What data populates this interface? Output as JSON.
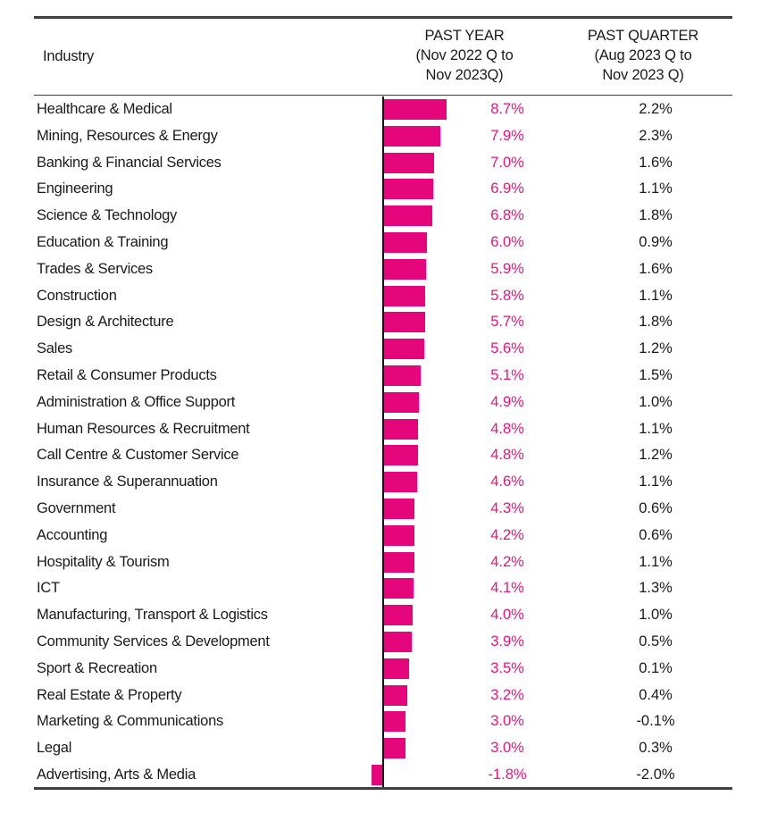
{
  "header": {
    "industry": "Industry",
    "past_year": [
      "PAST YEAR",
      "(Nov 2022 Q to",
      "Nov 2023Q)"
    ],
    "past_quarter": [
      "PAST QUARTER",
      "(Aug 2023 Q to",
      "Nov 2023 Q)"
    ]
  },
  "colors": {
    "bar": "#e4067a",
    "year_text": "#e8157e",
    "quarter_text": "#1a1a1a"
  },
  "chart_data": {
    "type": "bar",
    "orientation": "horizontal",
    "title": "",
    "xlabel": "",
    "ylabel": "Industry",
    "categories": [
      "Healthcare & Medical",
      "Mining, Resources & Energy",
      "Banking & Financial Services",
      "Engineering",
      "Science & Technology",
      "Education & Training",
      "Trades & Services",
      "Construction",
      "Design & Architecture",
      "Sales",
      "Retail & Consumer Products",
      "Administration & Office Support",
      "Human Resources & Recruitment",
      "Call Centre & Customer Service",
      "Insurance & Superannuation",
      "Government",
      "Accounting",
      "Hospitality & Tourism",
      "ICT",
      "Manufacturing, Transport & Logistics",
      "Community Services & Development",
      "Sport & Recreation",
      "Real Estate & Property",
      "Marketing & Communications",
      "Legal",
      "Advertising, Arts & Media"
    ],
    "series": [
      {
        "name": "PAST YEAR (Nov 2022 Q to Nov 2023Q)",
        "values": [
          8.7,
          7.9,
          7.0,
          6.9,
          6.8,
          6.0,
          5.9,
          5.8,
          5.7,
          5.6,
          5.1,
          4.9,
          4.8,
          4.8,
          4.6,
          4.3,
          4.2,
          4.2,
          4.1,
          4.0,
          3.9,
          3.5,
          3.2,
          3.0,
          3.0,
          -1.8
        ],
        "labels": [
          "8.7%",
          "7.9%",
          "7.0%",
          "6.9%",
          "6.8%",
          "6.0%",
          "5.9%",
          "5.8%",
          "5.7%",
          "5.6%",
          "5.1%",
          "4.9%",
          "4.8%",
          "4.8%",
          "4.6%",
          "4.3%",
          "4.2%",
          "4.2%",
          "4.1%",
          "4.0%",
          "3.9%",
          "3.5%",
          "3.2%",
          "3.0%",
          "3.0%",
          "-1.8%"
        ],
        "shown_as": "bars"
      },
      {
        "name": "PAST QUARTER (Aug 2023 Q to Nov 2023 Q)",
        "values": [
          2.2,
          2.3,
          1.6,
          1.1,
          1.8,
          0.9,
          1.6,
          1.1,
          1.8,
          1.2,
          1.5,
          1.0,
          1.1,
          1.2,
          1.1,
          0.6,
          0.6,
          1.1,
          1.3,
          1.0,
          0.5,
          0.1,
          0.4,
          -0.1,
          0.3,
          -2.0
        ],
        "labels": [
          "2.2%",
          "2.3%",
          "1.6%",
          "1.1%",
          "1.8%",
          "0.9%",
          "1.6%",
          "1.1%",
          "1.8%",
          "1.2%",
          "1.5%",
          "1.0%",
          "1.1%",
          "1.2%",
          "1.1%",
          "0.6%",
          "0.6%",
          "1.1%",
          "1.3%",
          "1.0%",
          "0.5%",
          "0.1%",
          "0.4%",
          "-0.1%",
          "0.3%",
          "-2.0%"
        ],
        "shown_as": "text"
      }
    ],
    "unit": "%",
    "grid": false,
    "legend": "none"
  }
}
